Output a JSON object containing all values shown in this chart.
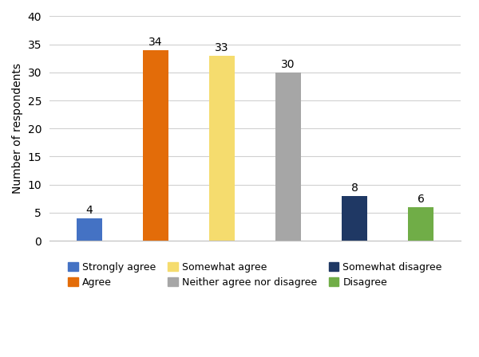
{
  "categories": [
    "Strongly agree",
    "Agree",
    "Somewhat agree",
    "Neither agree nor disagree",
    "Somewhat disagree",
    "Disagree"
  ],
  "values": [
    4,
    34,
    33,
    30,
    8,
    6
  ],
  "bar_colors": [
    "#4472C4",
    "#E36C09",
    "#F5DC6E",
    "#A6A6A6",
    "#1F3864",
    "#70AD47"
  ],
  "ylabel": "Number of respondents",
  "ylim": [
    0,
    40
  ],
  "yticks": [
    0,
    5,
    10,
    15,
    20,
    25,
    30,
    35,
    40
  ],
  "label_fontsize": 10,
  "tick_fontsize": 10,
  "bar_label_fontsize": 10,
  "legend_fontsize": 9,
  "background_color": "#ffffff",
  "grid_color": "#d0d0d0",
  "bar_width": 0.38,
  "legend_order": [
    0,
    1,
    2,
    3,
    4,
    5
  ]
}
